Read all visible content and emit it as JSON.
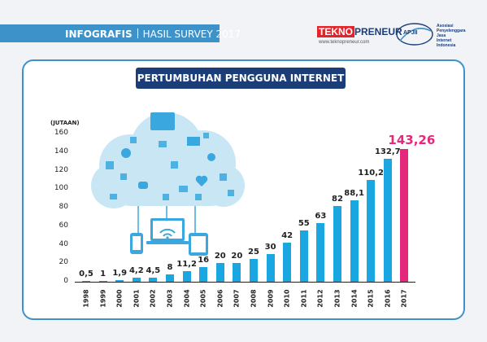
{
  "header": {
    "tag": "INFOGRAFIS",
    "survey": "HASIL SURVEY 2017"
  },
  "logos": {
    "teknopreneur_a": "TEKNO",
    "teknopreneur_b": "PRENEUR",
    "teknopreneur_url": "www.teknopreneur.com",
    "apjii_name": "APJII",
    "apjii_lines": [
      "Asosiasi",
      "Penyelenggara",
      "Jasa",
      "Internet",
      "Indonesia"
    ]
  },
  "colors": {
    "bar": "#1aa6e0",
    "highlight_bar": "#e4287c",
    "header_blue": "#3d93c9",
    "title_navy": "#1c3e78"
  },
  "chart_data": {
    "type": "bar",
    "title": "PERTUMBUHAN PENGGUNA INTERNET",
    "ylabel": "(JUTAAN)",
    "ylim": [
      0,
      160
    ],
    "yticks": [
      0,
      20,
      40,
      60,
      80,
      100,
      120,
      140,
      160
    ],
    "grid": false,
    "categories": [
      "1998",
      "1999",
      "2000",
      "2001",
      "2002",
      "2003",
      "2004",
      "2005",
      "2006",
      "2007",
      "2008",
      "2009",
      "2010",
      "2011",
      "2012",
      "2013",
      "2014",
      "2015",
      "2016",
      "2017"
    ],
    "values": [
      0.5,
      1,
      1.9,
      4.2,
      4.5,
      8,
      11.2,
      16,
      20,
      20,
      25,
      30,
      42,
      55,
      63,
      82,
      88.1,
      110.2,
      132.7,
      143.26
    ],
    "data_labels": [
      "0,5",
      "1",
      "1,9",
      "4,2",
      "4,5",
      "8",
      "11,2",
      "16",
      "20",
      "20",
      "25",
      "30",
      "42",
      "55",
      "63",
      "82",
      "88,1",
      "110,2",
      "132,7",
      "143,26"
    ],
    "highlight_index": 19
  },
  "icons": [
    "cloud-icon",
    "laptop-icon",
    "wifi-icon",
    "smartphone-icon",
    "tablet-icon",
    "camera-icon",
    "mail-icon",
    "heart-icon",
    "chat-bubble-icon",
    "gear-icon"
  ]
}
